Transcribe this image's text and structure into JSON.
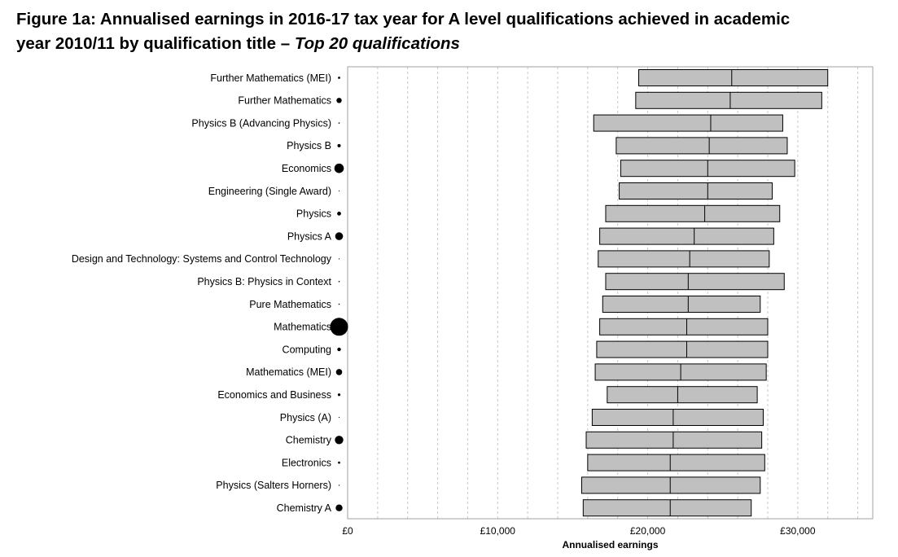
{
  "chart_data": {
    "type": "boxplot",
    "title_line1": "Figure 1a: Annualised earnings in 2016-17 tax year for A level qualifications achieved in academic",
    "title_line2_plain": "year 2010/11 by qualification title – ",
    "title_line2_italic": "Top 20 qualifications",
    "xlabel": "Annualised earnings",
    "xlim": [
      0,
      35000
    ],
    "x_ticks": [
      {
        "value": 0,
        "label": "£0"
      },
      {
        "value": 10000,
        "label": "£10,000"
      },
      {
        "value": 20000,
        "label": "£20,000"
      },
      {
        "value": 30000,
        "label": "£30,000"
      }
    ],
    "minor_grid_step": 2000,
    "grid": true,
    "categories": [
      {
        "label": "Further Mathematics (MEI)",
        "q1": 19400,
        "median": 25600,
        "q3": 32000,
        "marker": 1.4
      },
      {
        "label": "Further Mathematics",
        "q1": 19200,
        "median": 25500,
        "q3": 31600,
        "marker": 3.2
      },
      {
        "label": "Physics B (Advancing Physics)",
        "q1": 16400,
        "median": 24200,
        "q3": 29000,
        "marker": 0.8
      },
      {
        "label": "Physics B",
        "q1": 17900,
        "median": 24100,
        "q3": 29300,
        "marker": 2.0
      },
      {
        "label": "Economics",
        "q1": 18200,
        "median": 24000,
        "q3": 29800,
        "marker": 5.8
      },
      {
        "label": "Engineering (Single Award)",
        "q1": 18100,
        "median": 24000,
        "q3": 28300,
        "marker": 0.6
      },
      {
        "label": "Physics",
        "q1": 17200,
        "median": 23800,
        "q3": 28800,
        "marker": 2.4
      },
      {
        "label": "Physics A",
        "q1": 16800,
        "median": 23100,
        "q3": 28400,
        "marker": 4.8
      },
      {
        "label": "Design and Technology: Systems and Control Technology",
        "q1": 16700,
        "median": 22800,
        "q3": 28100,
        "marker": 0.6
      },
      {
        "label": "Physics B: Physics in Context",
        "q1": 17200,
        "median": 22700,
        "q3": 29100,
        "marker": 0.8
      },
      {
        "label": "Pure Mathematics",
        "q1": 17000,
        "median": 22700,
        "q3": 27500,
        "marker": 0.8
      },
      {
        "label": "Mathematics",
        "q1": 16800,
        "median": 22600,
        "q3": 28000,
        "marker": 11.0
      },
      {
        "label": "Computing",
        "q1": 16600,
        "median": 22600,
        "q3": 28000,
        "marker": 2.2
      },
      {
        "label": "Mathematics (MEI)",
        "q1": 16500,
        "median": 22200,
        "q3": 27900,
        "marker": 3.8
      },
      {
        "label": "Economics and Business",
        "q1": 17300,
        "median": 22000,
        "q3": 27300,
        "marker": 1.6
      },
      {
        "label": "Physics (A)",
        "q1": 16300,
        "median": 21700,
        "q3": 27700,
        "marker": 0.6
      },
      {
        "label": "Chemistry",
        "q1": 15900,
        "median": 21700,
        "q3": 27600,
        "marker": 5.2
      },
      {
        "label": "Electronics",
        "q1": 16000,
        "median": 21500,
        "q3": 27800,
        "marker": 1.4
      },
      {
        "label": "Physics (Salters Horners)",
        "q1": 15600,
        "median": 21500,
        "q3": 27500,
        "marker": 0.7
      },
      {
        "label": "Chemistry A",
        "q1": 15700,
        "median": 21500,
        "q3": 26900,
        "marker": 4.2
      }
    ],
    "colors": {
      "box_fill": "#c0c0c0",
      "box_stroke": "#000000",
      "grid": "#c8c8c8",
      "frame": "#a0a0a0",
      "marker": "#000000"
    }
  }
}
